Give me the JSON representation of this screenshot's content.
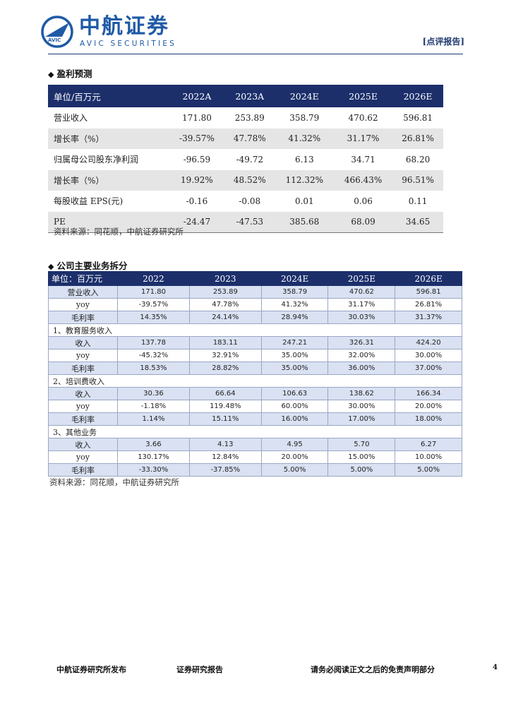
{
  "header": {
    "logo_cn": "中航证券",
    "logo_en": "AVIC SECURITIES",
    "logo_badge": "AVIC",
    "report_type": "[点评报告]"
  },
  "section1": {
    "title": "盈利预测",
    "columns": [
      "单位/百万元",
      "2022A",
      "2023A",
      "2024E",
      "2025E",
      "2026E"
    ],
    "rows": [
      {
        "label": "营业收入",
        "values": [
          "171.80",
          "253.89",
          "358.79",
          "470.62",
          "596.81"
        ]
      },
      {
        "label": "增长率（%）",
        "values": [
          "-39.57%",
          "47.78%",
          "41.32%",
          "31.17%",
          "26.81%"
        ]
      },
      {
        "label": "归属母公司股东净利润",
        "values": [
          "-96.59",
          "-49.72",
          "6.13",
          "34.71",
          "68.20"
        ]
      },
      {
        "label": "增长率（%）",
        "values": [
          "19.92%",
          "48.52%",
          "112.32%",
          "466.43%",
          "96.51%"
        ]
      },
      {
        "label": "每股收益 EPS(元)",
        "values": [
          "-0.16",
          "-0.08",
          "0.01",
          "0.06",
          "0.11"
        ]
      },
      {
        "label": "PE",
        "values": [
          "-24.47",
          "-47.53",
          "385.68",
          "68.09",
          "34.65"
        ]
      }
    ],
    "source": "资料来源：同花顺，中航证券研究所"
  },
  "section2": {
    "title": "公司主要业务拆分",
    "columns": [
      "单位：百万元",
      "2022",
      "2023",
      "2024E",
      "2025E",
      "2026E"
    ],
    "total": [
      {
        "label": "营业收入",
        "values": [
          "171.80",
          "253.89",
          "358.79",
          "470.62",
          "596.81"
        ]
      },
      {
        "label": "yoy",
        "values": [
          "-39.57%",
          "47.78%",
          "41.32%",
          "31.17%",
          "26.81%"
        ]
      },
      {
        "label": "毛利率",
        "values": [
          "14.35%",
          "24.14%",
          "28.94%",
          "30.03%",
          "31.37%"
        ]
      }
    ],
    "groups": [
      {
        "name": "1、教育服务收入",
        "rows": [
          {
            "label": "收入",
            "values": [
              "137.78",
              "183.11",
              "247.21",
              "326.31",
              "424.20"
            ]
          },
          {
            "label": "yoy",
            "values": [
              "-45.32%",
              "32.91%",
              "35.00%",
              "32.00%",
              "30.00%"
            ]
          },
          {
            "label": "毛利率",
            "values": [
              "18.53%",
              "28.82%",
              "35.00%",
              "36.00%",
              "37.00%"
            ]
          }
        ]
      },
      {
        "name": "2、培训费收入",
        "rows": [
          {
            "label": "收入",
            "values": [
              "30.36",
              "66.64",
              "106.63",
              "138.62",
              "166.34"
            ]
          },
          {
            "label": "yoy",
            "values": [
              "-1.18%",
              "119.48%",
              "60.00%",
              "30.00%",
              "20.00%"
            ]
          },
          {
            "label": "毛利率",
            "values": [
              "1.14%",
              "15.11%",
              "16.00%",
              "17.00%",
              "18.00%"
            ]
          }
        ]
      },
      {
        "name": "3、其他业务",
        "rows": [
          {
            "label": "收入",
            "values": [
              "3.66",
              "4.13",
              "4.95",
              "5.70",
              "6.27"
            ]
          },
          {
            "label": "yoy",
            "values": [
              "130.17%",
              "12.84%",
              "20.00%",
              "15.00%",
              "10.00%"
            ]
          },
          {
            "label": "毛利率",
            "values": [
              "-33.30%",
              "-37.85%",
              "5.00%",
              "5.00%",
              "5.00%"
            ]
          }
        ]
      }
    ],
    "source": "资料来源：同花顺，中航证券研究所"
  },
  "footer": {
    "left": "中航证券研究所发布",
    "center": "证券研究报告",
    "right": "请务必阅读正文之后的免责声明部分",
    "page": "4"
  }
}
